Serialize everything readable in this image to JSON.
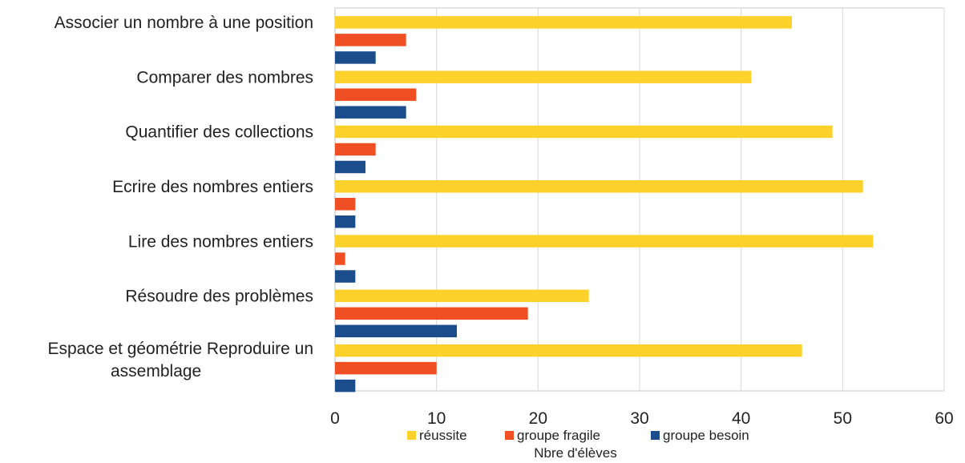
{
  "chart_data": {
    "type": "bar",
    "orientation": "horizontal",
    "categories": [
      [
        "Associer un nombre à une position"
      ],
      [
        "Comparer des nombres"
      ],
      [
        "Quantifier des collections"
      ],
      [
        "Ecrire des nombres entiers"
      ],
      [
        "Lire des nombres entiers"
      ],
      [
        "Résoudre des problèmes"
      ],
      [
        "Espace et géométrie Reproduire un",
        "assemblage"
      ]
    ],
    "series": [
      {
        "name": "réussite",
        "color": "#FCD12A",
        "values": [
          45,
          41,
          49,
          52,
          53,
          25,
          46
        ]
      },
      {
        "name": "groupe fragile",
        "color": "#F04E23",
        "values": [
          7,
          8,
          4,
          2,
          1,
          19,
          10
        ]
      },
      {
        "name": "groupe besoin",
        "color": "#1B4C8C",
        "values": [
          4,
          7,
          3,
          2,
          2,
          12,
          2
        ]
      }
    ],
    "xlabel": "Nbre d'élèves",
    "ylabel": "",
    "xlim": [
      0,
      60
    ],
    "xticks": [
      0,
      10,
      20,
      30,
      40,
      50,
      60
    ],
    "grid": true,
    "legend_position": "bottom"
  }
}
